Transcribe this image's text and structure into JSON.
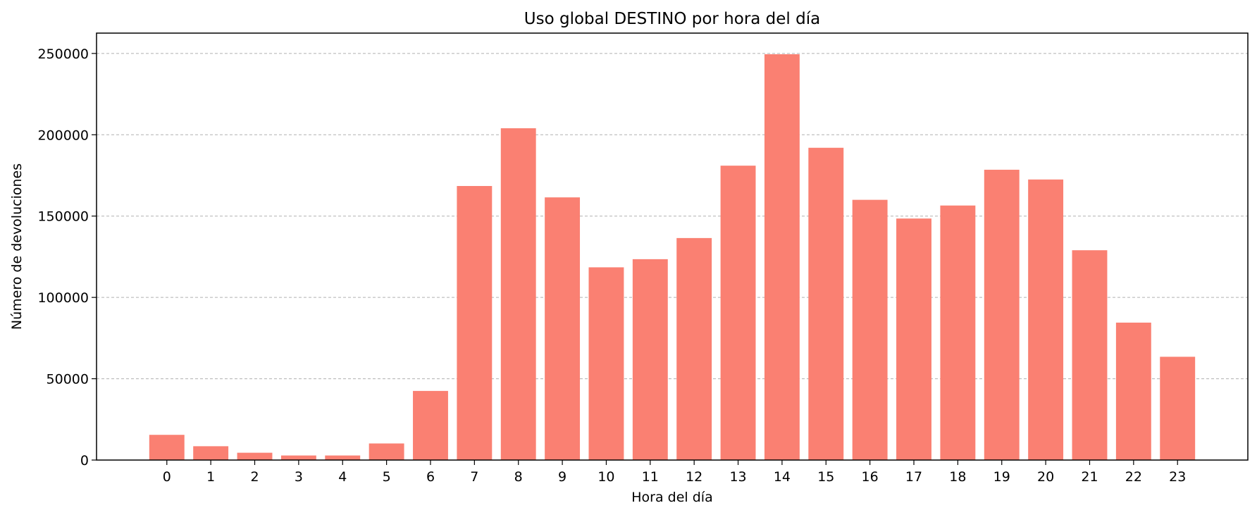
{
  "chart_data": {
    "type": "bar",
    "title": "Uso global DESTINO por hora del día",
    "xlabel": "Hora del día",
    "ylabel": "Número de devoluciones",
    "categories": [
      "0",
      "1",
      "2",
      "3",
      "4",
      "5",
      "6",
      "7",
      "8",
      "9",
      "10",
      "11",
      "12",
      "13",
      "14",
      "15",
      "16",
      "17",
      "18",
      "19",
      "20",
      "21",
      "22",
      "23"
    ],
    "values": [
      15500,
      8500,
      4500,
      2800,
      2800,
      10200,
      42500,
      168500,
      204000,
      161500,
      118500,
      123500,
      136500,
      181000,
      249500,
      192000,
      160000,
      148500,
      156500,
      178500,
      172500,
      129000,
      84500,
      63500
    ],
    "ylim": [
      0,
      262500
    ],
    "yticks": [
      0,
      50000,
      100000,
      150000,
      200000,
      250000
    ],
    "ytick_labels": [
      "0",
      "50000",
      "100000",
      "150000",
      "200000",
      "250000"
    ],
    "grid": "y-axis, dashed",
    "bar_color": "#fa8072",
    "legend": "none"
  }
}
